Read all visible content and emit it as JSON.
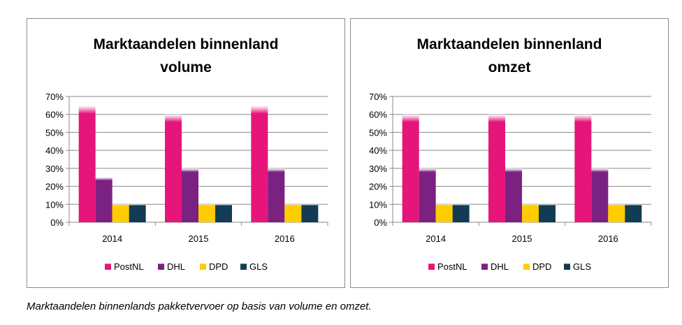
{
  "chart_data": [
    {
      "type": "bar",
      "title_lines": [
        "Marktaandelen binnenland",
        "volume"
      ],
      "categories": [
        "2014",
        "2015",
        "2016"
      ],
      "series": [
        {
          "name": "PostNL",
          "values": [
            65,
            60,
            65
          ]
        },
        {
          "name": "DHL",
          "values": [
            25,
            30,
            30
          ]
        },
        {
          "name": "DPD",
          "values": [
            10,
            10,
            10
          ]
        },
        {
          "name": "GLS",
          "values": [
            10,
            10,
            10
          ]
        }
      ],
      "yticks": [
        "0%",
        "10%",
        "20%",
        "30%",
        "40%",
        "50%",
        "60%",
        "70%"
      ],
      "ylim": [
        0,
        70
      ],
      "grid": true,
      "legend": "bottom"
    },
    {
      "type": "bar",
      "title_lines": [
        "Marktaandelen binnenland",
        "omzet"
      ],
      "categories": [
        "2014",
        "2015",
        "2016"
      ],
      "series": [
        {
          "name": "PostNL",
          "values": [
            60,
            60,
            60
          ]
        },
        {
          "name": "DHL",
          "values": [
            30,
            30,
            30
          ]
        },
        {
          "name": "DPD",
          "values": [
            10,
            10,
            10
          ]
        },
        {
          "name": "GLS",
          "values": [
            10,
            10,
            10
          ]
        }
      ],
      "yticks": [
        "0%",
        "10%",
        "20%",
        "30%",
        "40%",
        "50%",
        "60%",
        "70%"
      ],
      "ylim": [
        0,
        70
      ],
      "grid": true,
      "legend": "bottom"
    }
  ],
  "colors": {
    "PostNL": "#e5157a",
    "DHL": "#7b2181",
    "DPD": "#ffcc00",
    "GLS": "#123c55"
  },
  "caption": "Marktaandelen binnenlands pakketvervoer op basis van volume en omzet."
}
